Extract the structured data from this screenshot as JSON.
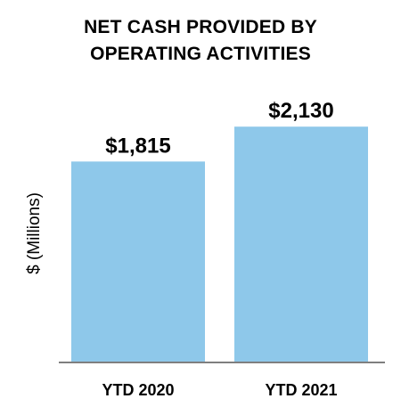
{
  "chart_data": {
    "type": "bar",
    "title_lines": [
      "NET CASH PROVIDED BY",
      "OPERATING ACTIVITIES"
    ],
    "ylabel": "$ (Millions)",
    "xlabel": "",
    "categories": [
      "YTD 2020",
      "YTD 2021"
    ],
    "values": [
      1815,
      2130
    ],
    "data_labels": [
      "$1,815",
      "$2,130"
    ],
    "ylim": [
      0,
      2550
    ],
    "grid": false,
    "legend": "none",
    "bar_color": "#8ec8ea",
    "axis_color": "#7f7f7f"
  }
}
